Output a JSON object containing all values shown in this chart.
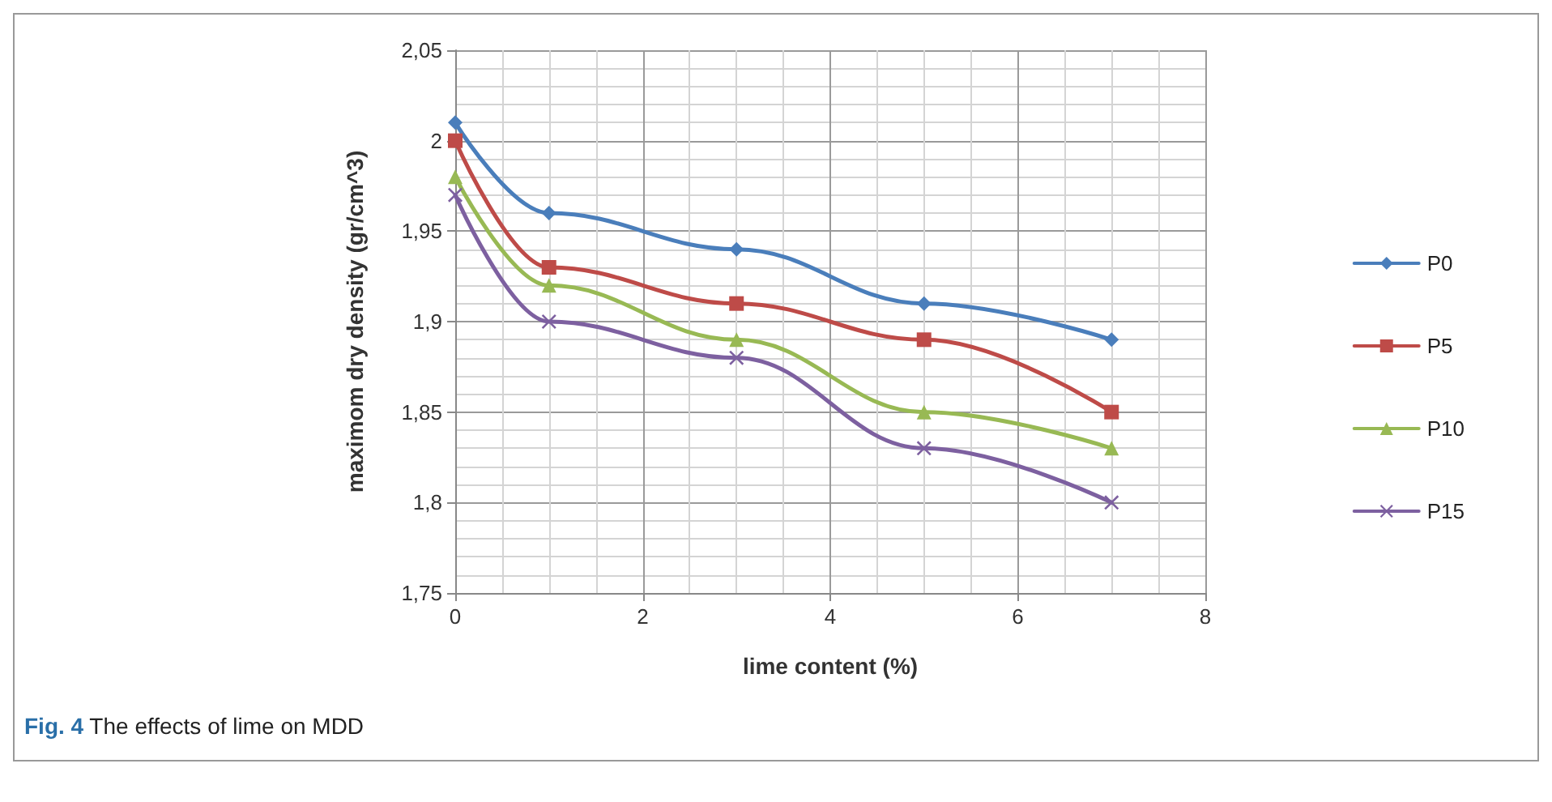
{
  "chart_data": {
    "type": "line",
    "xlabel": "lime content (%)",
    "ylabel": "maximom dry density (gr/cm^3)",
    "x": [
      0,
      1,
      3,
      5,
      7
    ],
    "series": [
      {
        "name": "P0",
        "color": "#4a7ebb",
        "marker": "diamond",
        "values": [
          2.01,
          1.96,
          1.94,
          1.91,
          1.89
        ]
      },
      {
        "name": "P5",
        "color": "#be4b48",
        "marker": "square",
        "values": [
          2.0,
          1.93,
          1.91,
          1.89,
          1.85
        ]
      },
      {
        "name": "P10",
        "color": "#98b954",
        "marker": "triangle",
        "values": [
          1.98,
          1.92,
          1.89,
          1.85,
          1.83
        ]
      },
      {
        "name": "P15",
        "color": "#7d60a0",
        "marker": "cross",
        "values": [
          1.97,
          1.9,
          1.88,
          1.83,
          1.8
        ]
      }
    ],
    "xlim": [
      0,
      8
    ],
    "xticks": [
      0,
      2,
      4,
      6,
      8
    ],
    "ylim": [
      1.75,
      2.05
    ],
    "yticks": [
      {
        "value": 1.75,
        "label": "1,75"
      },
      {
        "value": 1.8,
        "label": "1,8"
      },
      {
        "value": 1.85,
        "label": "1,85"
      },
      {
        "value": 1.9,
        "label": "1,9"
      },
      {
        "value": 1.95,
        "label": "1,95"
      },
      {
        "value": 2,
        "label": "2"
      },
      {
        "value": 2.05,
        "label": "2,05"
      }
    ],
    "grid": true,
    "legend": "right",
    "line_style": "solid",
    "annotations": [
      "**Fig. 4** The effects of lime on MDD"
    ]
  }
}
